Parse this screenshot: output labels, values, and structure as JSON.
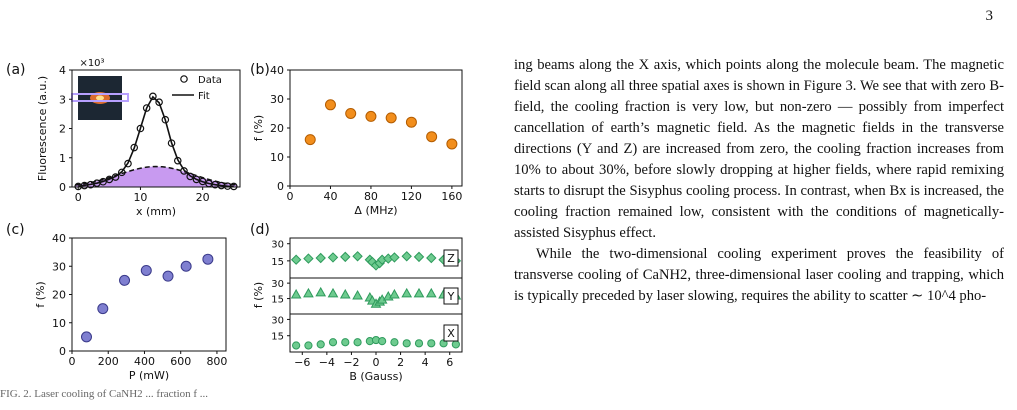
{
  "page_number": "3",
  "body_text": {
    "para1": "ing beams along the X axis, which points along the molecule beam. The magnetic field scan along all three spatial axes is shown in Figure 3. We see that with zero B-field, the cooling fraction is very low, but non-zero — possibly from imperfect cancellation of earth’s magnetic field. As the magnetic fields in the transverse directions (Y and Z) are increased from zero, the cooling fraction increases from 10% to about 30%, before slowly dropping at higher fields, where rapid remixing starts to disrupt the Sisyphus cooling process. In contrast, when Bx is increased, the cooling fraction remained low, consistent with the conditions of magnetically-assisted Sisyphus effect.",
    "para2": "While the two-dimensional cooling experiment proves the feasibility of transverse cooling of CaNH2, three-dimensional laser cooling and trapping, which is typically preceded by laser slowing, requires the ability to scatter ∼ 10^4 pho-"
  },
  "caption_fragment": "FIG. 2. Laser cooling of CaNH2 ... fraction f ...",
  "colors": {
    "orange": "#f28e1c",
    "blue_purple": "#7f7fd0",
    "green": "#2e9a5c",
    "fill_purple": "#c89af0"
  },
  "panels": {
    "a": {
      "label": "(a)",
      "xlabel": "x (mm)",
      "ylabel": "Fluorescence (a.u.)",
      "exponent": "×10³",
      "xticks": [
        "0",
        "10",
        "20"
      ],
      "yticks": [
        "0",
        "1",
        "2",
        "3",
        "4"
      ],
      "legend": [
        "Data",
        "Fit"
      ]
    },
    "b": {
      "label": "(b)",
      "xlabel": "Δ (MHz)",
      "ylabel": "f (%)",
      "xticks": [
        "0",
        "40",
        "80",
        "120",
        "160"
      ],
      "yticks": [
        "0",
        "10",
        "20",
        "30",
        "40"
      ]
    },
    "c": {
      "label": "(c)",
      "xlabel": "P (mW)",
      "ylabel": "f (%)",
      "xticks": [
        "0",
        "200",
        "400",
        "600",
        "800"
      ],
      "yticks": [
        "0",
        "10",
        "20",
        "30",
        "40"
      ]
    },
    "d": {
      "label": "(d)",
      "xlabel": "B (Gauss)",
      "ylabel": "f (%)",
      "xticks": [
        "−6",
        "−4",
        "−2",
        "0",
        "2",
        "4",
        "6"
      ],
      "yticks": [
        "15",
        "30"
      ],
      "axes": [
        "Z",
        "Y",
        "X"
      ]
    }
  },
  "chart_data": [
    {
      "panel": "a",
      "type": "scatter",
      "xlabel": "x (mm)",
      "ylabel": "Fluorescence (a.u.)",
      "xlim": [
        -1,
        26
      ],
      "ylim": [
        0,
        4000
      ],
      "series": [
        {
          "name": "Data",
          "x": [
            0,
            1,
            2,
            3,
            4,
            5,
            6,
            7,
            8,
            9,
            10,
            11,
            12,
            13,
            14,
            15,
            16,
            17,
            18,
            19,
            20,
            21,
            22,
            23,
            24,
            25
          ],
          "y": [
            20,
            50,
            80,
            130,
            180,
            260,
            340,
            500,
            800,
            1350,
            2000,
            2700,
            3100,
            2900,
            2300,
            1500,
            900,
            550,
            360,
            260,
            190,
            120,
            80,
            50,
            30,
            20
          ]
        },
        {
          "name": "Fit",
          "x": [
            0,
            1,
            2,
            3,
            4,
            5,
            6,
            7,
            8,
            9,
            10,
            11,
            12,
            13,
            14,
            15,
            16,
            17,
            18,
            19,
            20,
            21,
            22,
            23,
            24,
            25
          ],
          "y": [
            30,
            55,
            90,
            130,
            190,
            270,
            360,
            520,
            820,
            1330,
            2010,
            2700,
            3080,
            2880,
            2290,
            1510,
            930,
            580,
            380,
            260,
            180,
            120,
            80,
            50,
            30,
            20
          ]
        }
      ],
      "background_area": {
        "peak_x": 12.5,
        "peak_y": 700,
        "sigma": 6
      }
    },
    {
      "panel": "b",
      "type": "scatter",
      "xlabel": "Δ (MHz)",
      "ylabel": "f (%)",
      "xlim": [
        0,
        170
      ],
      "ylim": [
        0,
        40
      ],
      "x": [
        20,
        40,
        60,
        80,
        100,
        120,
        140,
        160
      ],
      "y": [
        16,
        28,
        25,
        24,
        23.5,
        22,
        17,
        14.5
      ]
    },
    {
      "panel": "c",
      "type": "scatter",
      "xlabel": "P (mW)",
      "ylabel": "f (%)",
      "xlim": [
        0,
        850
      ],
      "ylim": [
        0,
        40
      ],
      "x": [
        80,
        170,
        290,
        410,
        530,
        630,
        750
      ],
      "y": [
        5,
        15,
        25,
        28.5,
        26.5,
        30,
        32.5
      ]
    },
    {
      "panel": "d",
      "type": "scatter",
      "xlabel": "B (Gauss)",
      "ylabel": "f (%)",
      "xlim": [
        -7,
        7
      ],
      "ylim": [
        0,
        35
      ],
      "series": [
        {
          "name": "Z",
          "marker": "diamond",
          "x": [
            -6.5,
            -5.5,
            -4.5,
            -3.5,
            -2.5,
            -1.5,
            -0.5,
            -0.3,
            0,
            0.3,
            0.5,
            1,
            1.5,
            2.5,
            3.5,
            4.5,
            5.5,
            6.5
          ],
          "y": [
            16,
            17,
            17.5,
            18,
            18.5,
            19,
            16,
            14,
            11,
            13,
            16,
            17,
            18,
            19,
            18.5,
            17.5,
            16,
            15
          ]
        },
        {
          "name": "Y",
          "marker": "triangle",
          "x": [
            -6.5,
            -5.5,
            -4.5,
            -3.5,
            -2.5,
            -1.5,
            -0.5,
            -0.3,
            0,
            0.3,
            0.5,
            1,
            1.5,
            2.5,
            3.5,
            4.5,
            5.5,
            6.5
          ],
          "y": [
            19,
            20,
            21,
            20,
            19,
            18,
            16,
            13,
            10,
            12,
            14,
            17,
            19,
            20,
            20,
            20,
            19,
            18
          ]
        },
        {
          "name": "X",
          "marker": "circle",
          "x": [
            -6.5,
            -5.5,
            -4.5,
            -3.5,
            -2.5,
            -1.5,
            -0.5,
            0,
            0.5,
            1.5,
            2.5,
            3.5,
            4.5,
            5.5,
            6.5
          ],
          "y": [
            6,
            6,
            7,
            9,
            9,
            9,
            10,
            11,
            10,
            9,
            8,
            8,
            8,
            8,
            7
          ]
        }
      ]
    }
  ]
}
